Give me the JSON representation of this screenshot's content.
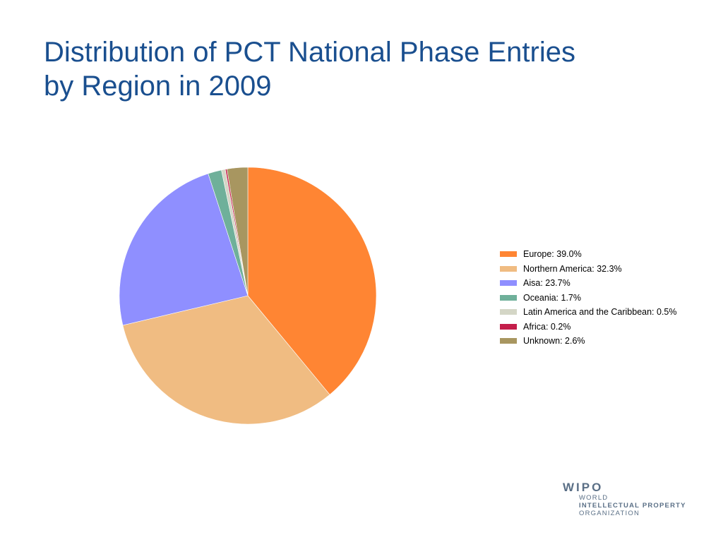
{
  "slide": {
    "title_line1": "Distribution of PCT National Phase Entries",
    "title_line2": "by Region in 2009"
  },
  "chart_data": {
    "type": "pie",
    "title": "Distribution of PCT National Phase Entries by Region in 2009",
    "legend_position": "right",
    "unit": "%",
    "slices": [
      {
        "label": "Europe: 39.0%",
        "name": "Europe",
        "value": 39.0,
        "color": "#ff8533"
      },
      {
        "label": "Northern America: 32.3%",
        "name": "Northern America",
        "value": 32.3,
        "color": "#f0bc82"
      },
      {
        "label": "Aisa: 23.7%",
        "name": "Aisa",
        "value": 23.7,
        "color": "#8f8fff"
      },
      {
        "label": "Oceania: 1.7%",
        "name": "Oceania",
        "value": 1.7,
        "color": "#6fb09a"
      },
      {
        "label": "Latin America and the Caribbean: 0.5%",
        "name": "Latin America and the Caribbean",
        "value": 0.5,
        "color": "#d4d6c6"
      },
      {
        "label": "Africa: 0.2%",
        "name": "Africa",
        "value": 0.2,
        "color": "#c41e4a"
      },
      {
        "label": "Unknown: 2.6%",
        "name": "Unknown",
        "value": 2.6,
        "color": "#a89660"
      }
    ]
  },
  "logo": {
    "name": "WIPO",
    "line1": "WORLD",
    "line2": "INTELLECTUAL PROPERTY",
    "line3": "ORGANIZATION",
    "color": "#5a6f86"
  }
}
